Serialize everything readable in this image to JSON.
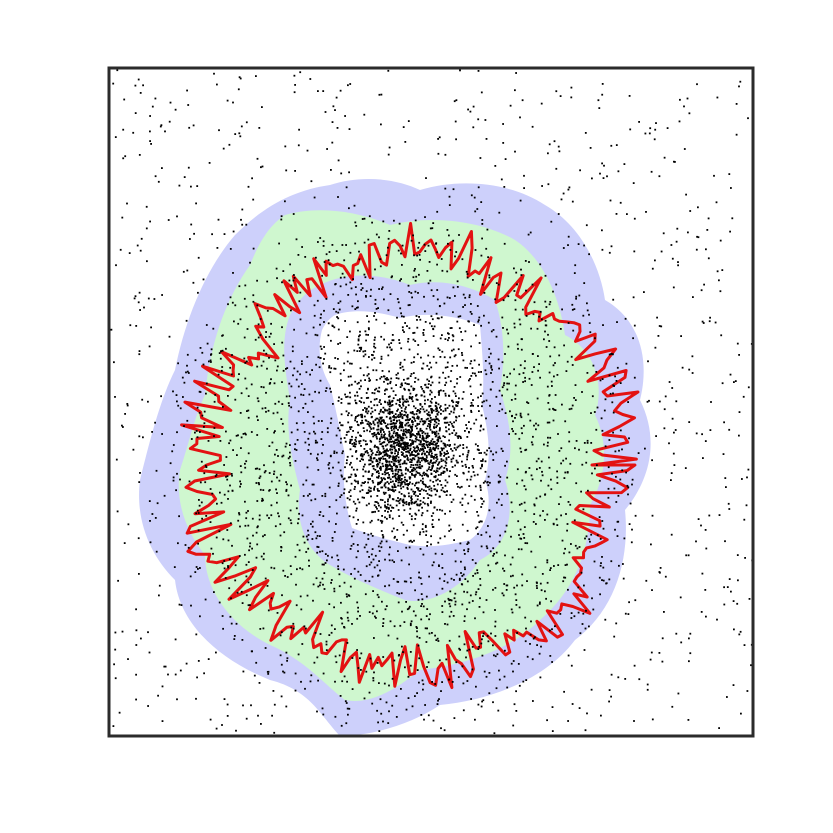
{
  "figure": {
    "frame_color": "#2b2b2b",
    "point_color": "#000000",
    "colors": {
      "outer_band": "#cdd0fb",
      "middle_band": "#cff7cf",
      "inner_band": "#cdd0fb",
      "core": "#ffffff",
      "boundary": "#e31212"
    },
    "layers": [
      "outer-blue-band",
      "green-band",
      "inner-blue-band",
      "white-core",
      "red-boundary-contour",
      "scattered-points"
    ]
  }
}
